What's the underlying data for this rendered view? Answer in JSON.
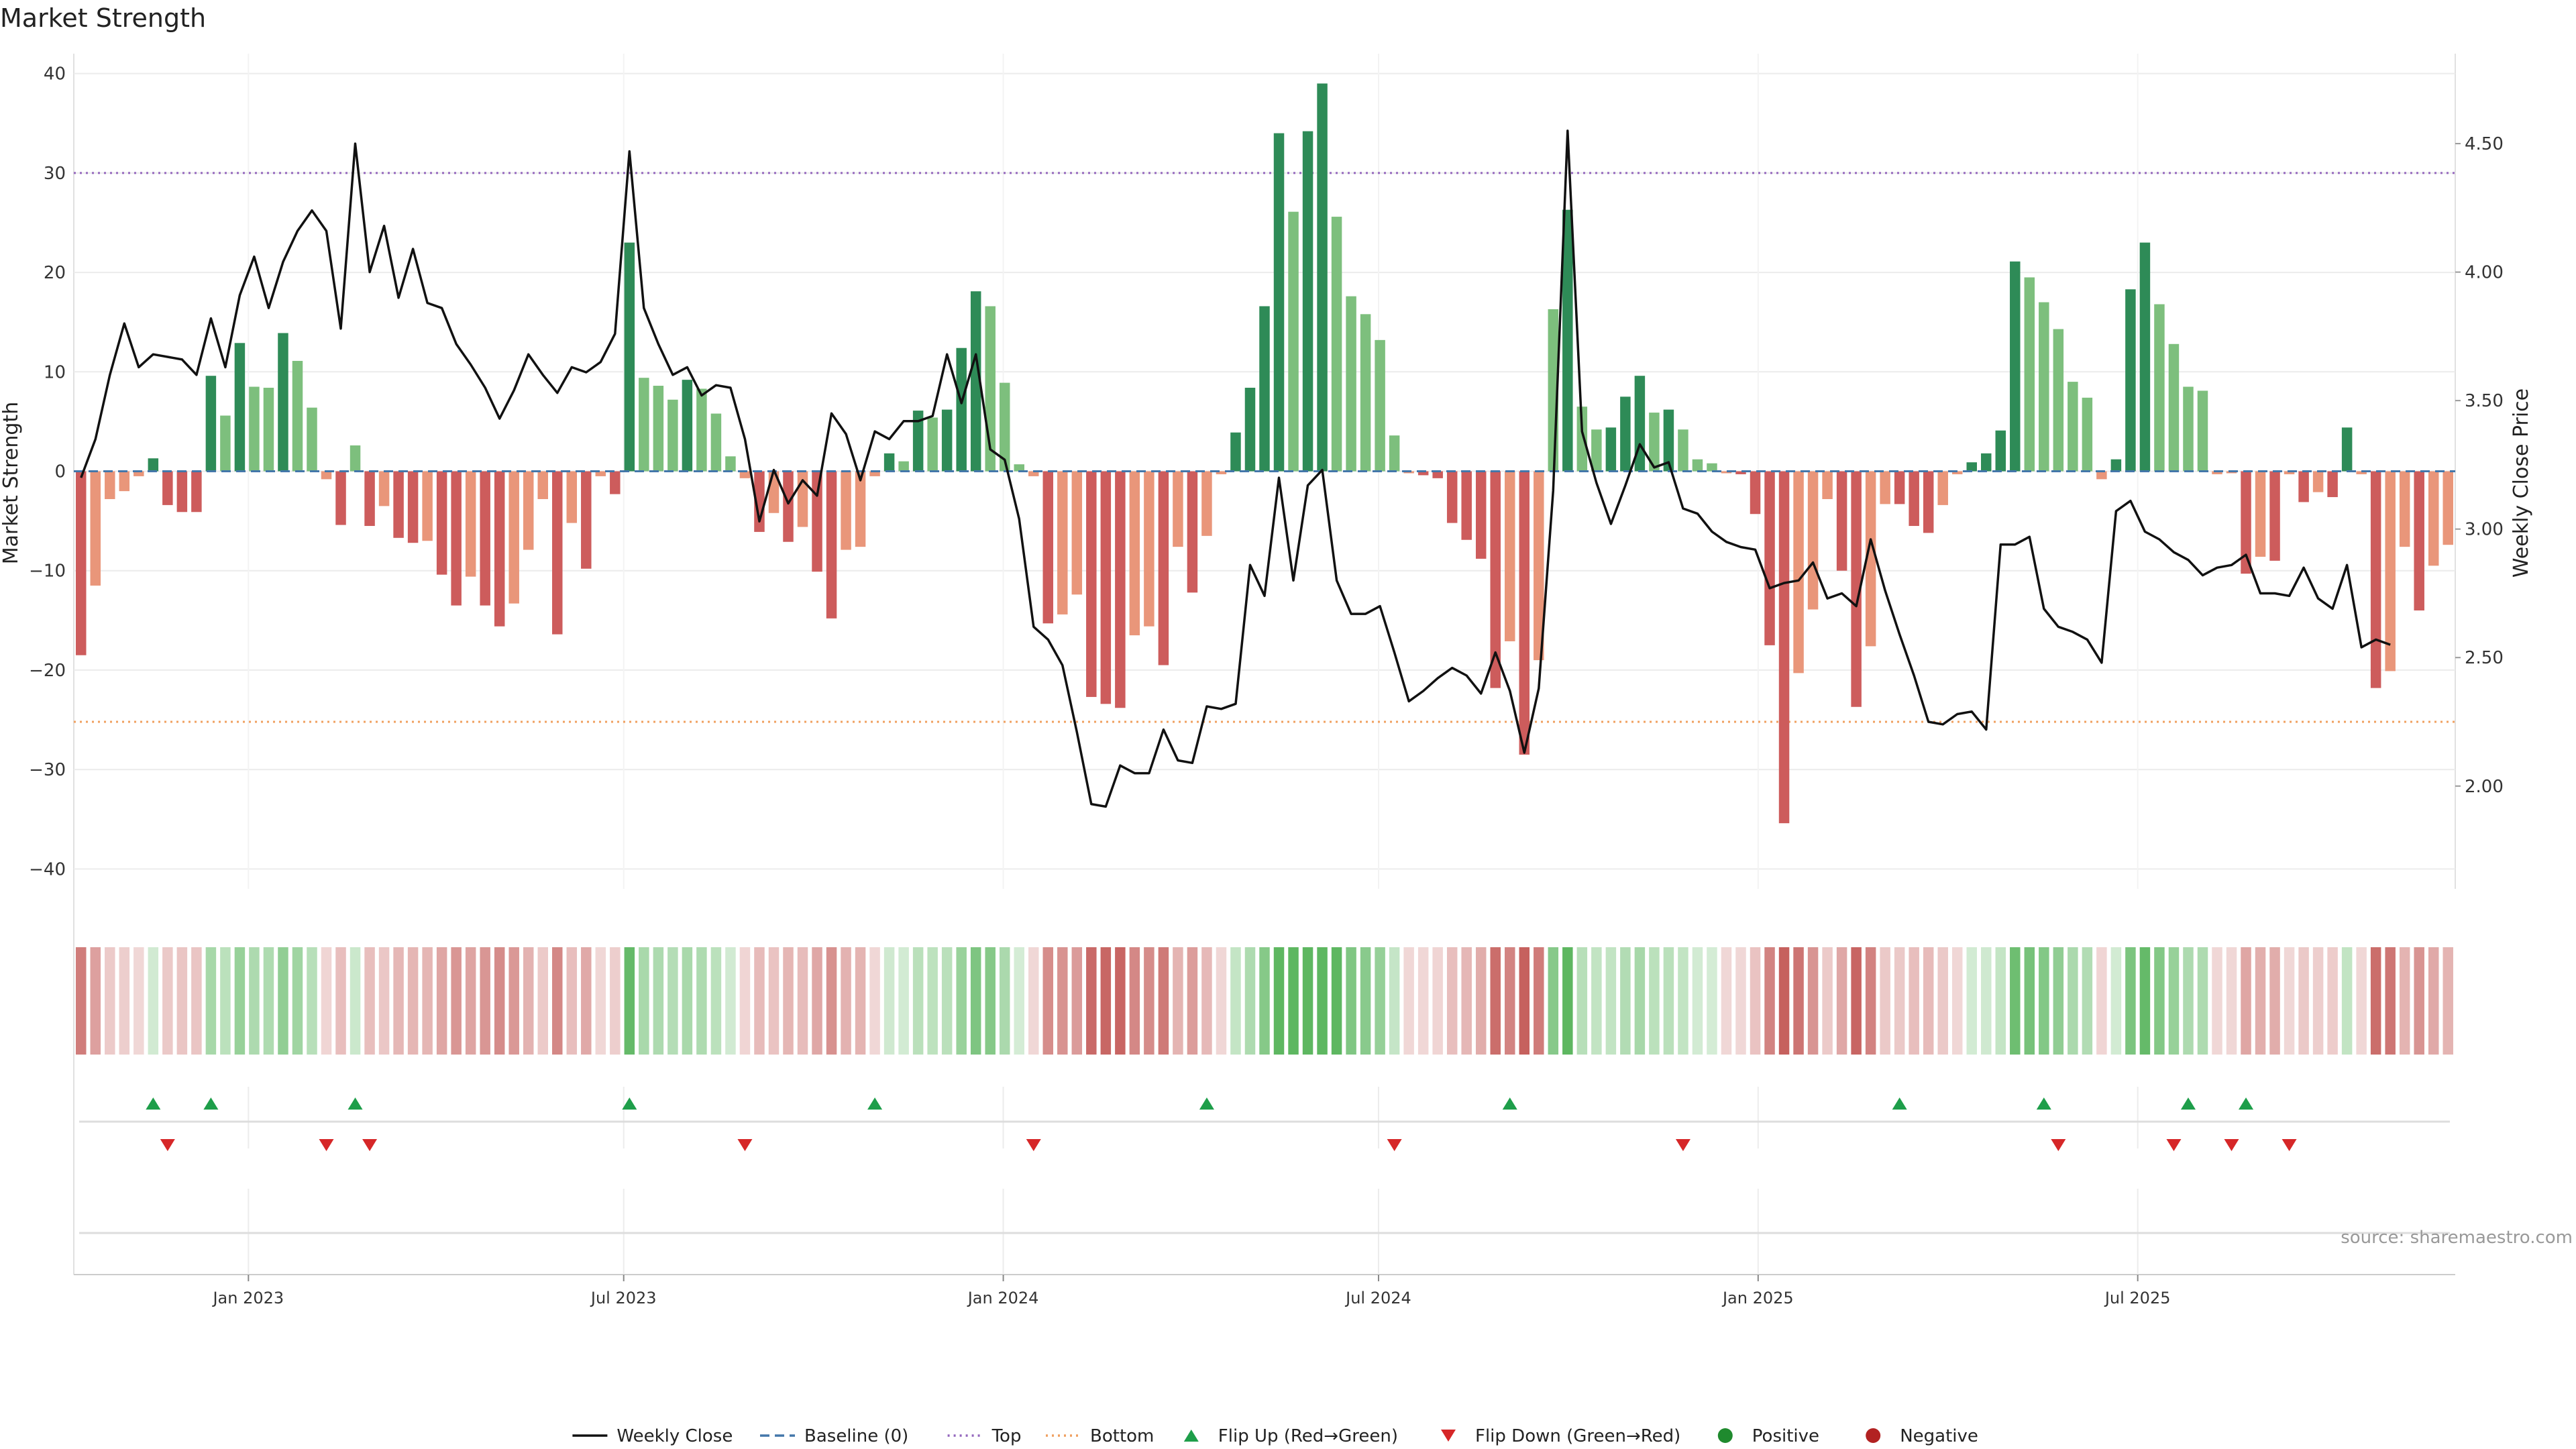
{
  "chart_data": {
    "type": "bar",
    "title": "Market Strength",
    "ylabel": "Market Strength",
    "y2label": "Weekly Close Price",
    "ylim": [
      -42,
      42
    ],
    "y2lim": [
      1.6,
      4.85
    ],
    "yticks": [
      40,
      30,
      20,
      10,
      0,
      -10,
      -20,
      -30,
      -40
    ],
    "ytick_labels": [
      "40",
      "30",
      "20",
      "10",
      "0",
      "−10",
      "−20",
      "−30",
      "−40"
    ],
    "y2ticks": [
      4.5,
      4.0,
      3.5,
      3.0,
      2.5,
      2.0
    ],
    "y2tick_labels": [
      "4.50",
      "4.00",
      "3.50",
      "3.00",
      "2.50",
      "2.00"
    ],
    "top_line": 30,
    "bottom_line": -25.2,
    "x_start": "2022-11-14",
    "x_end": "2025-10-27",
    "x_ticks": [
      "Jan 2023",
      "Jul 2023",
      "Jan 2024",
      "Jul 2024",
      "Jan 2025",
      "Jul 2025"
    ],
    "x_tick_weeks": [
      12.1,
      38.1,
      64.4,
      90.4,
      116.7,
      143.0
    ],
    "strength": [
      -18.5,
      -11.5,
      -2.8,
      -2,
      -0.5,
      1.3,
      -3.4,
      -4.1,
      -4.1,
      9.6,
      5.6,
      12.9,
      8.5,
      8.4,
      13.9,
      11.1,
      6.4,
      -0.8,
      -5.4,
      2.6,
      -5.5,
      -3.5,
      -6.7,
      -7.2,
      -7,
      -10.4,
      -13.5,
      -10.6,
      -13.5,
      -15.6,
      -13.3,
      -7.9,
      -2.8,
      -16.4,
      -5.2,
      -9.8,
      -0.5,
      -2.3,
      23,
      9.4,
      8.6,
      7.2,
      9.2,
      8.3,
      5.8,
      1.5,
      -0.7,
      -6.1,
      -4.2,
      -7.1,
      -5.6,
      -10.1,
      -14.8,
      -7.9,
      -7.6,
      -0.5,
      1.8,
      1.0,
      6.1,
      5.4,
      6.2,
      12.4,
      18.1,
      16.6,
      8.9,
      0.7,
      -0.5,
      -15.3,
      -14.4,
      -12.4,
      -22.7,
      -23.4,
      -23.8,
      -16.5,
      -15.6,
      -19.5,
      -7.6,
      -12.2,
      -6.5,
      -0.3,
      3.9,
      8.4,
      16.6,
      34,
      26.1,
      34.2,
      39,
      25.6,
      17.6,
      15.8,
      13.2,
      3.6,
      -0.2,
      -0.4,
      -0.7,
      -5.2,
      -6.9,
      -8.8,
      -21.8,
      -17.1,
      -28.5,
      -19,
      16.3,
      26.3,
      6.5,
      4.2,
      4.4,
      7.5,
      9.6,
      5.9,
      6.2,
      4.2,
      1.2,
      0.8,
      -0.2,
      -0.3,
      -4.3,
      -17.5,
      -35.4,
      -20.3,
      -13.9,
      -2.8,
      -10,
      -23.7,
      -17.6,
      -3.3,
      -3.3,
      -5.5,
      -6.2,
      -3.4,
      -0.3,
      0.9,
      1.8,
      4.1,
      21.1,
      19.5,
      17,
      14.3,
      9,
      7.4,
      -0.8,
      1.2,
      18.3,
      23,
      16.8,
      12.8,
      8.5,
      8.1,
      -0.3,
      -0.2,
      -10.3,
      -8.6,
      -9,
      -0.3,
      -3.1,
      -2.1,
      -2.6,
      4.4,
      -0.3,
      -21.8,
      -20.1,
      -7.6,
      -14,
      -9.5,
      -7.4
    ],
    "close": [
      3.2,
      3.35,
      3.6,
      3.8,
      3.63,
      3.68,
      3.67,
      3.66,
      3.6,
      3.82,
      3.63,
      3.91,
      4.06,
      3.86,
      4.04,
      4.16,
      4.24,
      4.16,
      3.78,
      4.5,
      4.0,
      4.18,
      3.9,
      4.09,
      3.88,
      3.86,
      3.72,
      3.64,
      3.55,
      3.43,
      3.54,
      3.68,
      3.6,
      3.53,
      3.63,
      3.61,
      3.65,
      3.76,
      4.47,
      3.86,
      3.72,
      3.6,
      3.63,
      3.52,
      3.56,
      3.55,
      3.35,
      3.03,
      3.23,
      3.1,
      3.19,
      3.13,
      3.45,
      3.37,
      3.19,
      3.38,
      3.35,
      3.42,
      3.42,
      3.44,
      3.68,
      3.49,
      3.68,
      3.31,
      3.27,
      3.04,
      2.62,
      2.57,
      2.47,
      2.21,
      1.93,
      1.92,
      2.08,
      2.05,
      2.05,
      2.22,
      2.1,
      2.09,
      2.31,
      2.3,
      2.32,
      2.86,
      2.74,
      3.2,
      2.8,
      3.17,
      3.23,
      2.8,
      2.67,
      2.67,
      2.7,
      2.52,
      2.33,
      2.37,
      2.42,
      2.46,
      2.43,
      2.36,
      2.52,
      2.37,
      2.13,
      2.38,
      3.15,
      4.55,
      3.38,
      3.18,
      3.02,
      3.17,
      3.33,
      3.24,
      3.26,
      3.08,
      3.06,
      2.99,
      2.95,
      2.93,
      2.92,
      2.77,
      2.79,
      2.8,
      2.87,
      2.73,
      2.75,
      2.7,
      2.96,
      2.76,
      2.59,
      2.43,
      2.25,
      2.24,
      2.28,
      2.29,
      2.22,
      2.94,
      2.94,
      2.97,
      2.69,
      2.62,
      2.6,
      2.57,
      2.48,
      3.07,
      3.11,
      2.99,
      2.96,
      2.91,
      2.88,
      2.82,
      2.85,
      2.86,
      2.9,
      2.75,
      2.75,
      2.74,
      2.85,
      2.73,
      2.69,
      2.86,
      2.54,
      2.57,
      2.55
    ],
    "flip_up_weeks": [
      5,
      9,
      19,
      38,
      55,
      78,
      99,
      126,
      136,
      146,
      150
    ],
    "flip_down_weeks": [
      6,
      17,
      20,
      46,
      66,
      91,
      111,
      137,
      145,
      149,
      153
    ],
    "legend": [
      {
        "name": "Weekly Close",
        "kind": "line-solid",
        "color": "#111111"
      },
      {
        "name": "Baseline (0)",
        "kind": "line-dash",
        "color": "#4477aa"
      },
      {
        "name": "Top",
        "kind": "line-dot",
        "color": "#9467bd"
      },
      {
        "name": "Bottom",
        "kind": "line-dot",
        "color": "#f0a060"
      },
      {
        "name": "Flip Up (Red→Green)",
        "kind": "tri-up",
        "color": "#1e9e4a"
      },
      {
        "name": "Flip Down (Green→Red)",
        "kind": "tri-down",
        "color": "#d62728"
      },
      {
        "name": "Positive",
        "kind": "dot",
        "color": "#1f8a2e"
      },
      {
        "name": "Negative",
        "kind": "dot",
        "color": "#b22222"
      }
    ],
    "source": "source: sharemaestro.com"
  },
  "colors": {
    "pos_strong": "#2e8b57",
    "pos_weak": "#7dbf7d",
    "neg_strong": "#cd5c5c",
    "neg_weak": "#e9967a",
    "close_line": "#111111",
    "baseline": "#4477aa",
    "top_line": "#9467bd",
    "bottom_line": "#f0a060",
    "flip_up": "#1e9e4a",
    "flip_down": "#d62728",
    "heat_pos": "#4caf50",
    "heat_neg": "#c0504d"
  }
}
